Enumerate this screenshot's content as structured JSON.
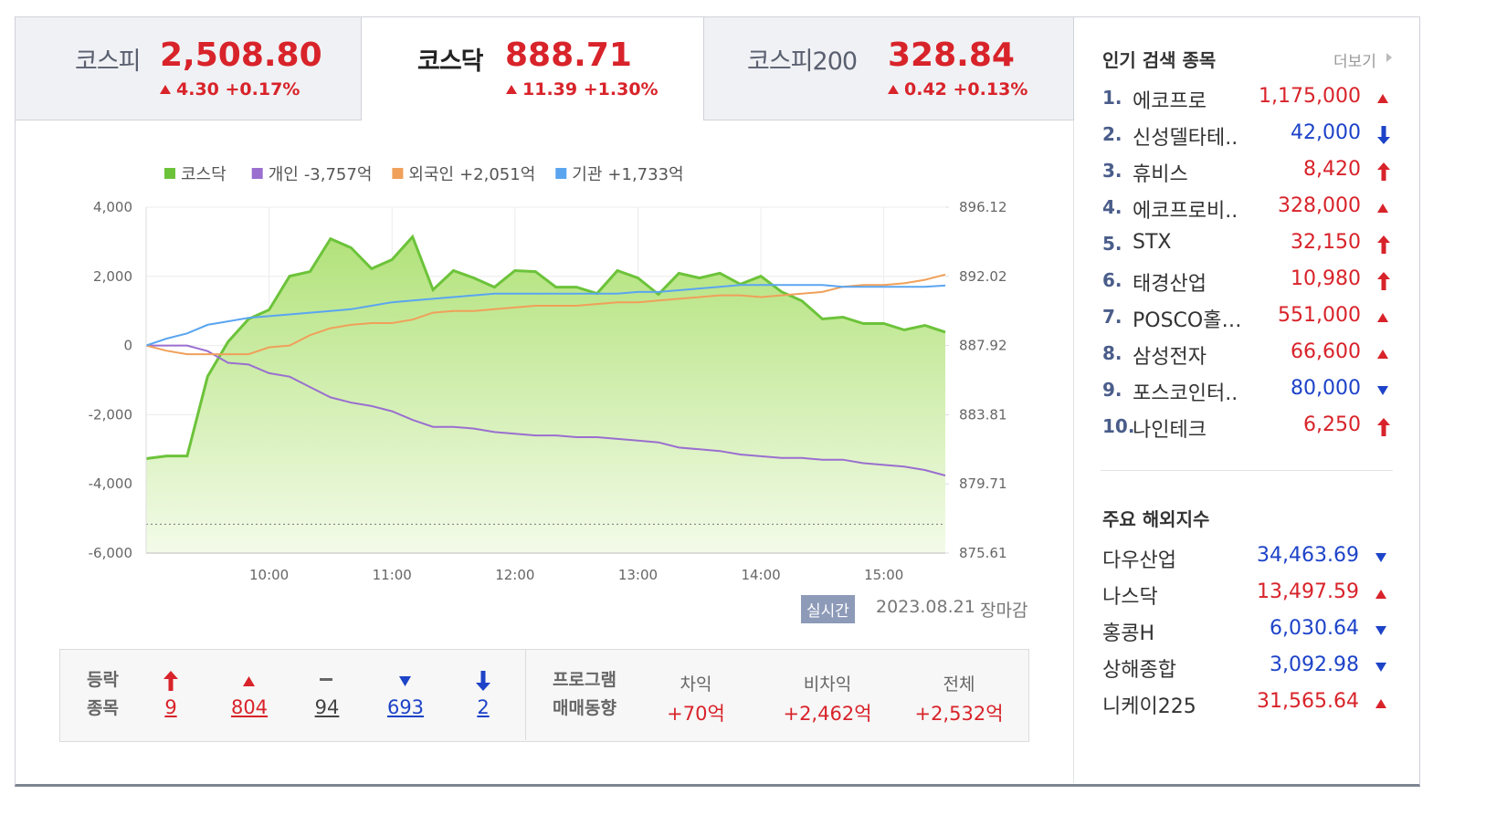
{
  "tabs": [
    {
      "name": "코스피",
      "value": "2,508.80",
      "change": "4.30",
      "rate": "+0.17%",
      "trend": "up"
    },
    {
      "name": "코스닥",
      "value": "888.71",
      "change": "11.39",
      "rate": "+1.30%",
      "trend": "up"
    },
    {
      "name": "코스피200",
      "value": "328.84",
      "change": "0.42",
      "rate": "+0.13%",
      "trend": "up"
    }
  ],
  "chart_data": {
    "type": "line",
    "x": [
      "9:00",
      "9:10",
      "9:20",
      "9:30",
      "9:40",
      "9:50",
      "10:00",
      "10:10",
      "10:20",
      "10:30",
      "10:40",
      "10:50",
      "11:00",
      "11:10",
      "11:20",
      "11:30",
      "11:40",
      "11:50",
      "12:00",
      "12:10",
      "12:20",
      "12:30",
      "12:40",
      "12:50",
      "13:00",
      "13:10",
      "13:20",
      "13:30",
      "13:40",
      "13:50",
      "14:00",
      "14:10",
      "14:20",
      "14:30",
      "14:40",
      "14:50",
      "15:00",
      "15:10",
      "15:20",
      "15:30"
    ],
    "xlim": [
      "9:00",
      "15:30"
    ],
    "xticks": [
      "10:00",
      "11:00",
      "12:00",
      "13:00",
      "14:00",
      "15:00"
    ],
    "ylim": [
      -6000,
      4000
    ],
    "yticks": [
      {
        "value": -6000,
        "label": "-6,000"
      },
      {
        "value": -4000,
        "label": "-4,000"
      },
      {
        "value": -2000,
        "label": "-2,000"
      },
      0,
      {
        "value": 2000,
        "label": "2,000"
      },
      {
        "value": 4000,
        "label": "4,000"
      }
    ],
    "y2lim": [
      875.61,
      896.12
    ],
    "y2ticks": [
      875.61,
      879.71,
      883.81,
      887.92,
      892.02,
      896.12
    ],
    "reference_line": {
      "value": 877.32,
      "axis": "y2"
    },
    "grid": true,
    "series": [
      {
        "name": "코스닥",
        "color": "#6cc33a",
        "axis": "y2",
        "area": true,
        "values": [
          881.21,
          881.37,
          881.37,
          886.08,
          888.14,
          889.49,
          890.03,
          892.03,
          892.3,
          894.25,
          893.71,
          892.47,
          893.01,
          894.36,
          891.22,
          892.36,
          891.92,
          891.38,
          892.36,
          892.3,
          891.38,
          891.38,
          891.0,
          892.36,
          891.92,
          890.95,
          892.2,
          891.92,
          892.2,
          891.55,
          892.03,
          891.11,
          890.57,
          889.49,
          889.6,
          889.22,
          889.22,
          888.84,
          889.11,
          888.71
        ]
      },
      {
        "name": "개인",
        "color": "#9a6fcf",
        "summary": "-3,757억",
        "values": [
          0,
          0,
          0,
          -160,
          -500,
          -550,
          -800,
          -900,
          -1200,
          -1500,
          -1650,
          -1750,
          -1900,
          -2150,
          -2350,
          -2350,
          -2400,
          -2500,
          -2550,
          -2600,
          -2600,
          -2650,
          -2650,
          -2700,
          -2750,
          -2800,
          -2950,
          -3000,
          -3050,
          -3150,
          -3200,
          -3250,
          -3250,
          -3300,
          -3300,
          -3400,
          -3450,
          -3500,
          -3600,
          -3757
        ]
      },
      {
        "name": "외국인",
        "color": "#f0a05a",
        "summary": "+2,051억",
        "values": [
          0,
          -150,
          -250,
          -250,
          -250,
          -250,
          -50,
          0,
          300,
          500,
          600,
          650,
          650,
          750,
          950,
          1000,
          1000,
          1050,
          1100,
          1150,
          1150,
          1150,
          1200,
          1250,
          1250,
          1300,
          1350,
          1400,
          1450,
          1450,
          1400,
          1450,
          1500,
          1550,
          1700,
          1750,
          1750,
          1800,
          1900,
          2051
        ]
      },
      {
        "name": "기관",
        "color": "#5aa5f0",
        "summary": "+1,733억",
        "values": [
          0,
          200,
          350,
          600,
          700,
          800,
          850,
          900,
          950,
          1000,
          1050,
          1150,
          1250,
          1300,
          1350,
          1400,
          1450,
          1500,
          1500,
          1500,
          1500,
          1500,
          1500,
          1500,
          1550,
          1550,
          1600,
          1650,
          1700,
          1750,
          1750,
          1750,
          1750,
          1750,
          1700,
          1700,
          1700,
          1700,
          1700,
          1733
        ]
      }
    ]
  },
  "chart_footer": {
    "badge": "실시간",
    "date": "2023.08.21",
    "status": "장마감"
  },
  "market_breadth": {
    "label": [
      "등락",
      "종목"
    ],
    "counts": [
      9,
      804,
      94,
      693,
      2
    ]
  },
  "program_trading": {
    "label": [
      "프로그램",
      "매매동향"
    ],
    "items": [
      {
        "name": "차익",
        "value": "+70억"
      },
      {
        "name": "비차익",
        "value": "+2,462억"
      },
      {
        "name": "전체",
        "value": "+2,532억"
      }
    ]
  },
  "popular": {
    "title": "인기 검색 종목",
    "more": "더보기",
    "items": [
      {
        "rank": "1.",
        "name": "에코프로",
        "price": "1,175,000",
        "trend": "up"
      },
      {
        "rank": "2.",
        "name": "신성델타테..",
        "price": "42,000",
        "trend": "limit_down"
      },
      {
        "rank": "3.",
        "name": "휴비스",
        "price": "8,420",
        "trend": "limit_up"
      },
      {
        "rank": "4.",
        "name": "에코프로비..",
        "price": "328,000",
        "trend": "up"
      },
      {
        "rank": "5.",
        "name": "STX",
        "price": "32,150",
        "trend": "limit_up"
      },
      {
        "rank": "6.",
        "name": "태경산업",
        "price": "10,980",
        "trend": "limit_up"
      },
      {
        "rank": "7.",
        "name": "POSCO홀…",
        "price": "551,000",
        "trend": "up"
      },
      {
        "rank": "8.",
        "name": "삼성전자",
        "price": "66,600",
        "trend": "up"
      },
      {
        "rank": "9.",
        "name": "포스코인터..",
        "price": "80,000",
        "trend": "down"
      },
      {
        "rank": "10.",
        "name": "나인테크",
        "price": "6,250",
        "trend": "limit_up"
      }
    ]
  },
  "overseas": {
    "title": "주요 해외지수",
    "items": [
      {
        "name": "다우산업",
        "value": "34,463.69",
        "trend": "down"
      },
      {
        "name": "나스닥",
        "value": "13,497.59",
        "trend": "up"
      },
      {
        "name": "홍콩H",
        "value": "6,030.64",
        "trend": "down"
      },
      {
        "name": "상해종합",
        "value": "3,092.98",
        "trend": "down"
      },
      {
        "name": "니케이225",
        "value": "31,565.64",
        "trend": "up"
      }
    ]
  }
}
